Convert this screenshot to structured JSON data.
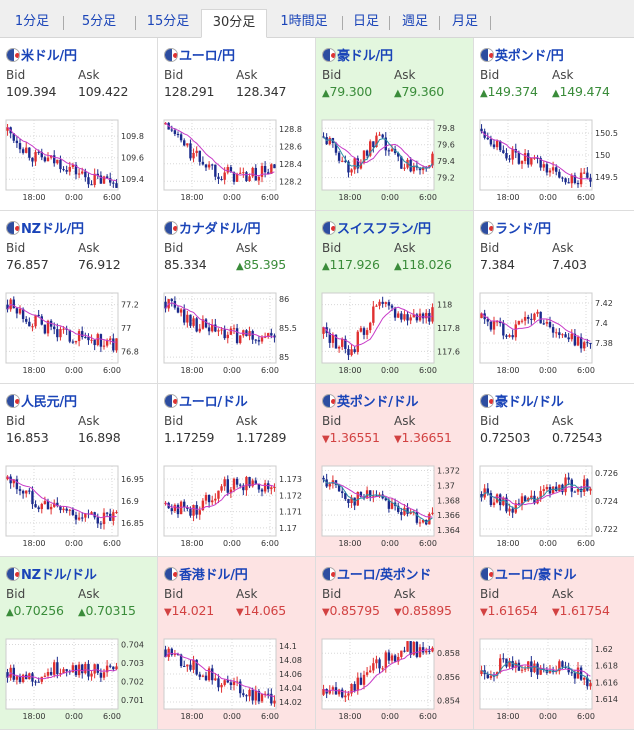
{
  "tabs": [
    {
      "label": "1分足",
      "active": false
    },
    {
      "label": "5分足",
      "active": false
    },
    {
      "label": "15分足",
      "active": false
    },
    {
      "label": "30分足",
      "active": true
    },
    {
      "label": "1時間足",
      "active": false
    },
    {
      "label": "日足",
      "active": false
    },
    {
      "label": "週足",
      "active": false
    },
    {
      "label": "月足",
      "active": false
    }
  ],
  "labels": {
    "bid": "Bid",
    "ask": "Ask"
  },
  "colors": {
    "up_text": "#3a8c3a",
    "down_text": "#d24242",
    "link": "#1a44b8",
    "bull_candle": "#e03030",
    "bear_candle": "#1a2a8c",
    "ma_line": "#c83cc8"
  },
  "x_ticks": [
    "18:00",
    "0:00",
    "6:00"
  ],
  "cards": [
    {
      "name": "米ドル/円",
      "flag": "usd-jpy-flag-icon",
      "state": "neutral",
      "bid": "109.394",
      "ask": "109.422",
      "bid_dir": "",
      "ask_dir": "",
      "y_ticks": [
        "109.8",
        "109.6",
        "109.4"
      ],
      "ylim": [
        109.3,
        109.95
      ],
      "trend": [
        109.85,
        109.6,
        109.55,
        109.4,
        109.38
      ],
      "ma2": false
    },
    {
      "name": "ユーロ/円",
      "flag": "eur-jpy-flag-icon",
      "state": "neutral",
      "bid": "128.291",
      "ask": "128.347",
      "bid_dir": "",
      "ask_dir": "",
      "y_ticks": [
        "128.8",
        "128.6",
        "128.4",
        "128.2"
      ],
      "ylim": [
        128.1,
        128.9
      ],
      "trend": [
        128.85,
        128.5,
        128.3,
        128.25,
        128.35
      ],
      "ma2": false
    },
    {
      "name": "豪ドル/円",
      "flag": "aud-jpy-flag-icon",
      "state": "up",
      "bid": "79.300",
      "ask": "79.360",
      "bid_dir": "▲",
      "ask_dir": "▲",
      "y_ticks": [
        "79.8",
        "79.6",
        "79.4",
        "79.2"
      ],
      "ylim": [
        79.05,
        79.9
      ],
      "trend": [
        79.7,
        79.3,
        79.65,
        79.35,
        79.4
      ],
      "ma2": true
    },
    {
      "name": "英ポンド/円",
      "flag": "gbp-jpy-flag-icon",
      "state": "neutral",
      "bid": "149.374",
      "ask": "149.474",
      "bid_dir": "▲",
      "ask_dir": "▲",
      "y_ticks": [
        "150.5",
        "150",
        "149.5"
      ],
      "ylim": [
        149.2,
        150.8
      ],
      "trend": [
        150.6,
        150.0,
        149.8,
        149.5,
        149.4
      ],
      "ma2": false
    },
    {
      "name": "NZドル/円",
      "flag": "nzd-jpy-flag-icon",
      "state": "neutral",
      "bid": "76.857",
      "ask": "76.912",
      "bid_dir": "",
      "ask_dir": "",
      "y_ticks": [
        "77.2",
        "77",
        "76.8"
      ],
      "ylim": [
        76.7,
        77.3
      ],
      "trend": [
        77.2,
        77.05,
        76.95,
        76.9,
        76.85
      ],
      "ma2": false
    },
    {
      "name": "カナダドル/円",
      "flag": "cad-jpy-flag-icon",
      "state": "neutral",
      "bid": "85.334",
      "ask": "85.395",
      "bid_dir": "",
      "ask_dir": "▲",
      "y_ticks": [
        "86",
        "85.5",
        "85"
      ],
      "ylim": [
        84.9,
        86.1
      ],
      "trend": [
        85.95,
        85.6,
        85.4,
        85.35,
        85.35
      ],
      "ma2": false
    },
    {
      "name": "スイスフラン/円",
      "flag": "chf-jpy-flag-icon",
      "state": "up",
      "bid": "117.926",
      "ask": "118.026",
      "bid_dir": "▲",
      "ask_dir": "▲",
      "y_ticks": [
        "118",
        "117.8",
        "117.6"
      ],
      "ylim": [
        117.5,
        118.1
      ],
      "trend": [
        117.75,
        117.6,
        118.0,
        117.9,
        117.92
      ],
      "ma2": false
    },
    {
      "name": "ランド/円",
      "flag": "zar-jpy-flag-icon",
      "state": "neutral",
      "bid": "7.384",
      "ask": "7.403",
      "bid_dir": "",
      "ask_dir": "",
      "y_ticks": [
        "7.42",
        "7.4",
        "7.38"
      ],
      "ylim": [
        7.36,
        7.43
      ],
      "trend": [
        7.405,
        7.39,
        7.41,
        7.385,
        7.38
      ],
      "ma2": false
    },
    {
      "name": "人民元/円",
      "flag": "cny-jpy-flag-icon",
      "state": "neutral",
      "bid": "16.853",
      "ask": "16.898",
      "bid_dir": "",
      "ask_dir": "",
      "y_ticks": [
        "16.95",
        "16.9",
        "16.85"
      ],
      "ylim": [
        16.82,
        16.98
      ],
      "trend": [
        16.95,
        16.9,
        16.88,
        16.86,
        16.86
      ],
      "ma2": false
    },
    {
      "name": "ユーロ/ドル",
      "flag": "eur-usd-flag-icon",
      "state": "neutral",
      "bid": "1.17259",
      "ask": "1.17289",
      "bid_dir": "",
      "ask_dir": "",
      "y_ticks": [
        "1.173",
        "1.172",
        "1.171",
        "1.17"
      ],
      "ylim": [
        1.1695,
        1.1738
      ],
      "trend": [
        1.1715,
        1.171,
        1.1725,
        1.1728,
        1.1726
      ],
      "ma2": false
    },
    {
      "name": "英ポンド/ドル",
      "flag": "gbp-usd-flag-icon",
      "state": "down",
      "bid": "1.36551",
      "ask": "1.36651",
      "bid_dir": "▼",
      "ask_dir": "▼",
      "y_ticks": [
        "1.372",
        "1.37",
        "1.368",
        "1.366",
        "1.364"
      ],
      "ylim": [
        1.3632,
        1.3726
      ],
      "trend": [
        1.371,
        1.368,
        1.369,
        1.366,
        1.3655
      ],
      "ma2": true
    },
    {
      "name": "豪ドル/ドル",
      "flag": "aud-usd-flag-icon",
      "state": "neutral",
      "bid": "0.72503",
      "ask": "0.72543",
      "bid_dir": "",
      "ask_dir": "",
      "y_ticks": [
        "0.726",
        "0.724",
        "0.722"
      ],
      "ylim": [
        0.7215,
        0.7265
      ],
      "trend": [
        0.7245,
        0.7235,
        0.7242,
        0.7252,
        0.725
      ],
      "ma2": true
    },
    {
      "name": "NZドル/ドル",
      "flag": "nzd-usd-flag-icon",
      "state": "up",
      "bid": "0.70256",
      "ask": "0.70315",
      "bid_dir": "▲",
      "ask_dir": "▲",
      "y_ticks": [
        "0.704",
        "0.703",
        "0.702",
        "0.701"
      ],
      "ylim": [
        0.7005,
        0.7043
      ],
      "trend": [
        0.7025,
        0.7022,
        0.7028,
        0.7026,
        0.7025
      ],
      "ma2": false
    },
    {
      "name": "香港ドル/円",
      "flag": "hkd-jpy-flag-icon",
      "state": "down",
      "bid": "14.021",
      "ask": "14.065",
      "bid_dir": "▼",
      "ask_dir": "▼",
      "y_ticks": [
        "14.1",
        "14.08",
        "14.06",
        "14.04",
        "14.02"
      ],
      "ylim": [
        14.01,
        14.11
      ],
      "trend": [
        14.095,
        14.07,
        14.05,
        14.035,
        14.025
      ],
      "ma2": false
    },
    {
      "name": "ユーロ/英ポンド",
      "flag": "eur-gbp-flag-icon",
      "state": "down",
      "bid": "0.85795",
      "ask": "0.85895",
      "bid_dir": "▼",
      "ask_dir": "▼",
      "y_ticks": [
        "0.858",
        "0.856",
        "0.854"
      ],
      "ylim": [
        0.8533,
        0.8592
      ],
      "trend": [
        0.8545,
        0.855,
        0.857,
        0.8585,
        0.858
      ],
      "ma2": false
    },
    {
      "name": "ユーロ/豪ドル",
      "flag": "eur-aud-flag-icon",
      "state": "down",
      "bid": "1.61654",
      "ask": "1.61754",
      "bid_dir": "▼",
      "ask_dir": "▼",
      "y_ticks": [
        "1.62",
        "1.618",
        "1.616",
        "1.614"
      ],
      "ylim": [
        1.6128,
        1.6212
      ],
      "trend": [
        1.617,
        1.6185,
        1.6175,
        1.6182,
        1.6162
      ],
      "ma2": true
    }
  ]
}
